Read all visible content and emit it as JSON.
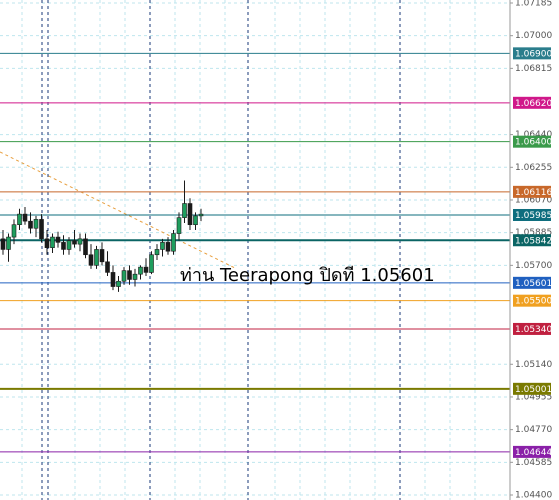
{
  "chart_data": {
    "type": "candlestick",
    "annotation": "ท่าน Teerapong ปิดที 1.05601",
    "ylim": [
      1.044,
      1.07185
    ],
    "yticks": [
      1.07185,
      {
        "value": 1.07,
        "label": "1.07000"
      },
      1.06815,
      {
        "value": 1.0644,
        "label": "1.06440"
      },
      1.06255,
      {
        "value": 1.0607,
        "label": "1.06070"
      },
      1.05885,
      {
        "value": 1.057,
        "label": "1.05700"
      },
      {
        "value": 1.0514,
        "label": "1.05140"
      },
      1.04955,
      {
        "value": 1.0477,
        "label": "1.04770"
      },
      1.04585,
      {
        "value": 1.044,
        "label": "1.04400"
      }
    ],
    "grid": true,
    "up_color": "#1e9e5e",
    "down_color": "#1a1a1a",
    "candles": {
      "open": [
        1.0585,
        1.0579,
        1.0586,
        1.0593,
        1.0599,
        1.0595,
        1.0591,
        1.0596,
        1.0585,
        1.058,
        1.0586,
        1.0583,
        1.0579,
        1.0584,
        1.0582,
        1.0585,
        1.0576,
        1.057,
        1.0579,
        1.0572,
        1.0566,
        1.0558,
        1.0561,
        1.0567,
        1.0562,
        1.0565,
        1.0569,
        1.0566,
        1.0576,
        1.0579,
        1.0583,
        1.0578,
        1.0588,
        1.0597,
        1.0605,
        1.0593,
        1.0598
      ],
      "high": [
        1.059,
        1.0588,
        1.0596,
        1.0602,
        1.0603,
        1.06,
        1.0598,
        1.0599,
        1.059,
        1.0588,
        1.0589,
        1.0587,
        1.0586,
        1.059,
        1.0588,
        1.0588,
        1.0582,
        1.0581,
        1.0583,
        1.0578,
        1.057,
        1.0564,
        1.0569,
        1.057,
        1.0568,
        1.057,
        1.0574,
        1.0578,
        1.0582,
        1.0585,
        1.0586,
        1.059,
        1.06,
        1.0618,
        1.0608,
        1.06,
        1.0602
      ],
      "low": [
        1.0576,
        1.0572,
        1.0582,
        1.059,
        1.0593,
        1.0588,
        1.0586,
        1.0583,
        1.0576,
        1.0577,
        1.058,
        1.0576,
        1.0576,
        1.058,
        1.0578,
        1.0574,
        1.0568,
        1.0568,
        1.057,
        1.0564,
        1.0556,
        1.0555,
        1.0559,
        1.0559,
        1.0558,
        1.0562,
        1.0564,
        1.0565,
        1.0573,
        1.0575,
        1.0576,
        1.0576,
        1.0584,
        1.0594,
        1.059,
        1.059,
        1.0595
      ],
      "close": [
        1.0579,
        1.0586,
        1.0593,
        1.0599,
        1.0595,
        1.0591,
        1.0596,
        1.0585,
        1.058,
        1.0586,
        1.0583,
        1.0579,
        1.0584,
        1.0582,
        1.0585,
        1.0576,
        1.057,
        1.0579,
        1.0572,
        1.0566,
        1.0558,
        1.0561,
        1.0567,
        1.0562,
        1.0565,
        1.0569,
        1.0566,
        1.0576,
        1.0579,
        1.0583,
        1.0578,
        1.0588,
        1.0597,
        1.0605,
        1.0593,
        1.0598,
        1.0599
      ]
    },
    "levels": [
      {
        "value": 1.069,
        "label": "1.06900",
        "color": "#2a7d8c"
      },
      {
        "value": 1.0662,
        "label": "1.06620",
        "color": "#d0188a"
      },
      {
        "value": 1.064,
        "label": "1.06400",
        "color": "#3a9a4a"
      },
      {
        "value": 1.06116,
        "label": "1.06116",
        "color": "#c8682a"
      },
      {
        "value": 1.05985,
        "label": "1.05985",
        "color": "#0e6d7e"
      },
      {
        "value": 1.05842,
        "label": "1.05842",
        "color": "#0a6464",
        "thick": true
      },
      {
        "value": 1.05601,
        "label": "1.05601",
        "color": "#2060c0"
      },
      {
        "value": 1.055,
        "label": "1.05500",
        "color": "#f0a020"
      },
      {
        "value": 1.0534,
        "label": "1.05340",
        "color": "#c02040"
      },
      {
        "value": 1.05001,
        "label": "1.05001",
        "color": "#7a7a00",
        "thick": true
      },
      {
        "value": 1.04644,
        "label": "1.04644",
        "color": "#8a20a8"
      }
    ]
  }
}
